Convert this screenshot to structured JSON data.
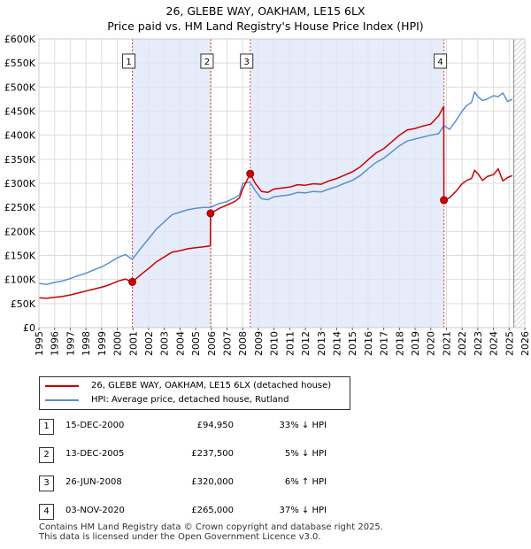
{
  "title_line1": "26, GLEBE WAY, OAKHAM, LE15 6LX",
  "title_line2": "Price paid vs. HM Land Registry's House Price Index (HPI)",
  "legend": {
    "property_label": "26, GLEBE WAY, OAKHAM, LE15 6LX (detached house)",
    "hpi_label": "HPI: Average price, detached house, Rutland"
  },
  "sales": [
    {
      "num": "1",
      "date": "15-DEC-2000",
      "price": "£94,950",
      "hpi": "33% ↓ HPI"
    },
    {
      "num": "2",
      "date": "13-DEC-2005",
      "price": "£237,500",
      "hpi": "5% ↓ HPI"
    },
    {
      "num": "3",
      "date": "26-JUN-2008",
      "price": "£320,000",
      "hpi": "6% ↑ HPI"
    },
    {
      "num": "4",
      "date": "03-NOV-2020",
      "price": "£265,000",
      "hpi": "37% ↓ HPI"
    }
  ],
  "footer": {
    "line1": "Contains HM Land Registry data © Crown copyright and database right 2025.",
    "line2": "This data is licensed under the Open Government Licence v3.0."
  },
  "chart_data": {
    "type": "line",
    "xlim": [
      1995,
      2026
    ],
    "ylim": [
      0,
      600000
    ],
    "x_ticks": [
      1995,
      1996,
      1997,
      1998,
      1999,
      2000,
      2001,
      2002,
      2003,
      2004,
      2005,
      2006,
      2007,
      2008,
      2009,
      2010,
      2011,
      2012,
      2013,
      2014,
      2015,
      2016,
      2017,
      2018,
      2019,
      2020,
      2021,
      2022,
      2023,
      2024,
      2025,
      2026
    ],
    "y_ticks": [
      0,
      50000,
      100000,
      150000,
      200000,
      250000,
      300000,
      350000,
      400000,
      450000,
      500000,
      550000,
      600000
    ],
    "y_tick_labels": [
      "£0",
      "£50K",
      "£100K",
      "£150K",
      "£200K",
      "£250K",
      "£300K",
      "£350K",
      "£400K",
      "£450K",
      "£500K",
      "£550K",
      "£600K"
    ],
    "colors": {
      "property": "#cc0000",
      "hpi": "#5b8fd0",
      "sale_shading": "#dde6f7",
      "marker_line": "#dd4444",
      "future_hatch": "#aaaaaa"
    },
    "future_start": 2025.3,
    "series": [
      {
        "name": "HPI: Average price, detached house, Rutland",
        "x": [
          1995.0,
          1995.5,
          1996.0,
          1996.5,
          1997.0,
          1997.5,
          1998.0,
          1998.5,
          1999.0,
          1999.5,
          2000.0,
          2000.5,
          2000.96,
          2001.5,
          2002.0,
          2002.5,
          2003.0,
          2003.5,
          2004.0,
          2004.5,
          2005.0,
          2005.5,
          2005.95,
          2006.5,
          2007.0,
          2007.5,
          2007.8,
          2008.0,
          2008.48,
          2008.8,
          2009.2,
          2009.6,
          2010.0,
          2010.5,
          2011.0,
          2011.5,
          2012.0,
          2012.5,
          2013.0,
          2013.5,
          2014.0,
          2014.5,
          2015.0,
          2015.5,
          2016.0,
          2016.5,
          2017.0,
          2017.5,
          2018.0,
          2018.5,
          2019.0,
          2019.5,
          2020.0,
          2020.5,
          2020.84,
          2021.2,
          2021.6,
          2022.0,
          2022.3,
          2022.6,
          2022.8,
          2023.0,
          2023.3,
          2023.6,
          2024.0,
          2024.3,
          2024.6,
          2024.9,
          2025.2
        ],
        "y": [
          92000,
          90000,
          94000,
          97000,
          102000,
          108000,
          113000,
          120000,
          126000,
          135000,
          145000,
          152000,
          142000,
          165000,
          185000,
          205000,
          220000,
          235000,
          240000,
          245000,
          248000,
          250000,
          250000,
          258000,
          262000,
          270000,
          276000,
          300000,
          302000,
          285000,
          268000,
          266000,
          272000,
          274000,
          276000,
          281000,
          280000,
          283000,
          282000,
          288000,
          293000,
          300000,
          306000,
          316000,
          330000,
          343000,
          352000,
          365000,
          378000,
          388000,
          392000,
          396000,
          400000,
          403000,
          420000,
          412000,
          430000,
          450000,
          462000,
          468000,
          490000,
          480000,
          472000,
          475000,
          482000,
          480000,
          488000,
          470000,
          475000
        ]
      },
      {
        "name": "26, GLEBE WAY, OAKHAM, LE15 6LX (detached house)",
        "x": [
          1995.0,
          1995.5,
          1996.0,
          1996.5,
          1997.0,
          1997.5,
          1998.0,
          1998.5,
          1999.0,
          1999.5,
          2000.0,
          2000.5,
          2000.96,
          2001.5,
          2002.0,
          2002.5,
          2003.0,
          2003.5,
          2004.0,
          2004.5,
          2005.0,
          2005.5,
          2005.94,
          2005.95,
          2006.5,
          2007.0,
          2007.5,
          2007.8,
          2008.0,
          2008.47,
          2008.48,
          2008.8,
          2009.2,
          2009.6,
          2010.0,
          2010.5,
          2011.0,
          2011.5,
          2012.0,
          2012.5,
          2013.0,
          2013.5,
          2014.0,
          2014.5,
          2015.0,
          2015.5,
          2016.0,
          2016.5,
          2017.0,
          2017.5,
          2018.0,
          2018.5,
          2019.0,
          2019.5,
          2020.0,
          2020.5,
          2020.83,
          2020.84,
          2021.2,
          2021.6,
          2022.0,
          2022.3,
          2022.6,
          2022.8,
          2023.0,
          2023.3,
          2023.6,
          2024.0,
          2024.3,
          2024.6,
          2024.9,
          2025.2
        ],
        "y": [
          62000,
          61000,
          63000,
          65000,
          68000,
          72000,
          76000,
          80000,
          84000,
          89000,
          96000,
          101000,
          94950,
          110000,
          123000,
          137000,
          147000,
          157000,
          160000,
          164000,
          166000,
          168000,
          170000,
          237500,
          248000,
          255000,
          262000,
          270000,
          288000,
          319000,
          320000,
          300000,
          283000,
          281000,
          288000,
          290000,
          292000,
          297000,
          296000,
          299000,
          298000,
          305000,
          310000,
          317000,
          324000,
          334000,
          349000,
          363000,
          372000,
          386000,
          400000,
          411000,
          414000,
          419000,
          423000,
          440000,
          460000,
          265000,
          270000,
          283000,
          299000,
          306000,
          310000,
          327000,
          320000,
          306000,
          314000,
          318000,
          330000,
          305000,
          312000,
          316000
        ]
      }
    ],
    "sales_points": [
      {
        "label": "1",
        "x": 2000.96,
        "y": 94950
      },
      {
        "label": "2",
        "x": 2005.95,
        "y": 237500
      },
      {
        "label": "3",
        "x": 2008.48,
        "y": 320000
      },
      {
        "label": "4",
        "x": 2020.84,
        "y": 265000
      }
    ],
    "title": "26, GLEBE WAY, OAKHAM, LE15 6LX",
    "subtitle": "Price paid vs. HM Land Registry's House Price Index (HPI)",
    "xlabel": "",
    "ylabel": ""
  }
}
